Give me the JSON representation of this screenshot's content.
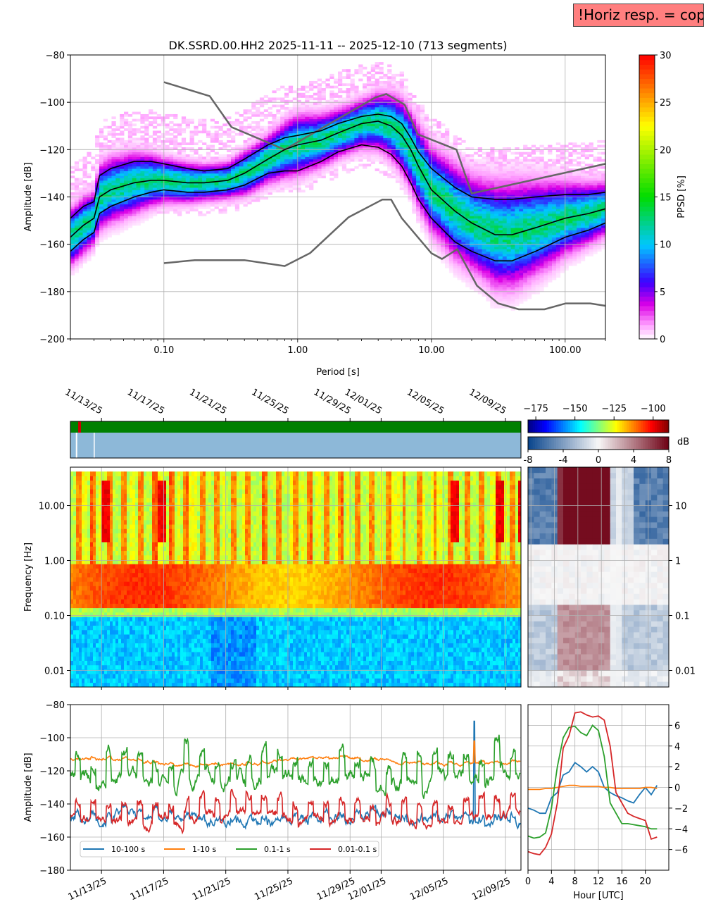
{
  "header": {
    "warning": "!Horiz resp. = copy",
    "title": "DK.SSRD.00.HH2   2025-11-11 -- 2025-12-10  (713 segments)"
  },
  "colors": {
    "grey_model": "#666666",
    "percentile": "#000000",
    "status_ok": "#008000",
    "status_bad": "#cc0000",
    "coverage": "#8db8d8",
    "series": [
      "#1f77b4",
      "#ff7f0e",
      "#2ca02c",
      "#d62728"
    ]
  },
  "chart_data": [
    {
      "id": "ppsd",
      "type": "heatmap",
      "title": "DK.SSRD.00.HH2   2025-11-11 -- 2025-12-10  (713 segments)",
      "xlabel": "Period [s]",
      "ylabel": "Amplitude [dB]",
      "xscale": "log",
      "xlim": [
        0.02,
        200
      ],
      "ylim": [
        -200,
        -80
      ],
      "xticks": [
        0.1,
        1,
        10,
        100
      ],
      "xtick_labels": [
        "0.10",
        "1.00",
        "10.00",
        "100.00"
      ],
      "yticks": [
        -200,
        -180,
        -160,
        -140,
        -120,
        -100,
        -80
      ],
      "colorbar": {
        "label": "PPSD [%]",
        "range": [
          0,
          30
        ],
        "ticks": [
          0,
          5,
          10,
          15,
          20,
          25,
          30
        ]
      },
      "percentiles": {
        "period": [
          0.02,
          0.025,
          0.03,
          0.033,
          0.04,
          0.06,
          0.08,
          0.1,
          0.15,
          0.2,
          0.3,
          0.4,
          0.6,
          0.8,
          1.0,
          1.5,
          2.0,
          3.0,
          4.0,
          5.0,
          6.0,
          7.0,
          8.0,
          10,
          15,
          20,
          30,
          40,
          60,
          100,
          150,
          200
        ],
        "upper": [
          -149,
          -144,
          -142,
          -131,
          -128,
          -125,
          -125,
          -126,
          -128,
          -129,
          -128,
          -124,
          -118,
          -115,
          -114,
          -112,
          -109,
          -106,
          -105,
          -106,
          -109,
          -115,
          -121,
          -128,
          -136,
          -140,
          -141,
          -141,
          -140,
          -139,
          -139,
          -138
        ],
        "median": [
          -157,
          -152,
          -149,
          -140,
          -137,
          -134,
          -133,
          -133,
          -134,
          -134,
          -133,
          -130,
          -124,
          -120,
          -118,
          -116,
          -113,
          -109,
          -108,
          -110,
          -114,
          -120,
          -127,
          -137,
          -146,
          -151,
          -156,
          -156,
          -153,
          -149,
          -147,
          -145
        ],
        "lower": [
          -163,
          -158,
          -155,
          -147,
          -144,
          -140,
          -138,
          -137,
          -138,
          -138,
          -137,
          -135,
          -130,
          -129,
          -129,
          -125,
          -121,
          -118,
          -119,
          -122,
          -127,
          -134,
          -141,
          -149,
          -159,
          -163,
          -167,
          -167,
          -163,
          -157,
          -154,
          -151
        ]
      },
      "noise_models": {
        "high": {
          "period": [
            0.1,
            0.22,
            0.32,
            0.8,
            3.8,
            4.6,
            6.3,
            7.9,
            15.4,
            20,
            354.8
          ],
          "db": [
            -91.5,
            -97.4,
            -110.5,
            -120,
            -98,
            -96.5,
            -101,
            -113.5,
            -120,
            -138.5,
            -126
          ]
        },
        "low": {
          "period": [
            0.1,
            0.17,
            0.4,
            0.8,
            1.24,
            2.4,
            4.3,
            5.0,
            6.0,
            10,
            12,
            15.6,
            21.9,
            31.6,
            45,
            70,
            101,
            154,
            200
          ],
          "db": [
            -168,
            -166.7,
            -166.7,
            -169.2,
            -163.7,
            -148.6,
            -141.1,
            -141.1,
            -149,
            -163.8,
            -166.2,
            -162.1,
            -177.5,
            -185,
            -187.5,
            -187.5,
            -185,
            -185,
            -186
          ]
        }
      }
    },
    {
      "id": "status",
      "type": "bar",
      "description_labels": "data availability and coverage strips",
      "segments": [
        {
          "start": "11/13/25 00",
          "end": "11/13/25 06",
          "state": "gap"
        },
        {
          "start": "11/13/25 06",
          "end": "12/10/25",
          "state": "ok"
        }
      ]
    },
    {
      "id": "spectrogram",
      "type": "heatmap",
      "ylabel": "Frequency [Hz]",
      "yscale": "log",
      "ylim": [
        0.005,
        50
      ],
      "yticks": [
        0.01,
        0.1,
        1,
        10
      ],
      "ytick_labels": [
        "0.01",
        "0.10",
        "1.00",
        "10.00"
      ],
      "date_ticks": [
        "11/13/25",
        "11/17/25",
        "11/21/25",
        "11/25/25",
        "11/29/25",
        "12/01/25",
        "12/05/25",
        "12/09/25"
      ],
      "colorbar": {
        "range": [
          -180,
          -90
        ],
        "ticks": [
          -175,
          -150,
          -125,
          -100
        ]
      }
    },
    {
      "id": "diurnal",
      "type": "heatmap",
      "yscale": "log",
      "ylim": [
        0.005,
        50
      ],
      "ytick_labels": [
        "10",
        "1",
        "0.1",
        "0.01"
      ],
      "colorbar": {
        "label": "dB",
        "range": [
          -8,
          8
        ],
        "ticks": [
          -8,
          -4,
          0,
          4,
          8
        ]
      }
    },
    {
      "id": "band_timeseries",
      "type": "line",
      "ylabel": "Amplitude [dB]",
      "ylim": [
        -180,
        -80
      ],
      "yticks": [
        -180,
        -160,
        -140,
        -120,
        -100,
        -80
      ],
      "date_ticks": [
        "11/13/25",
        "11/17/25",
        "11/21/25",
        "11/25/25",
        "11/29/25",
        "12/01/25",
        "12/05/25",
        "12/09/25"
      ],
      "series": [
        {
          "name": "10-100 s",
          "mean": -148
        },
        {
          "name": "1-10 s",
          "mean": -114
        },
        {
          "name": "0.1-1 s",
          "mean": -120
        },
        {
          "name": "0.01-0.1 s",
          "mean": -145
        }
      ]
    },
    {
      "id": "diurnal_bands",
      "type": "line",
      "xlabel": "Hour [UTC]",
      "xlim": [
        0,
        23
      ],
      "xticks": [
        0,
        4,
        8,
        12,
        16,
        20
      ],
      "ylim": [
        -8,
        8
      ],
      "yticks": [
        -6,
        -4,
        -2,
        0,
        2,
        4,
        6
      ],
      "hours": [
        0,
        1,
        2,
        3,
        4,
        5,
        6,
        7,
        8,
        9,
        10,
        11,
        12,
        13,
        14,
        15,
        16,
        17,
        18,
        19,
        20,
        21,
        22
      ],
      "series": [
        {
          "name": "10-100 s",
          "values": [
            -2.0,
            -2.2,
            -2.5,
            -2.5,
            -1.0,
            -0.5,
            1.2,
            1.5,
            2.4,
            2.0,
            1.5,
            2.0,
            1.5,
            0.0,
            -0.5,
            -0.8,
            -1.0,
            -1.3,
            -1.5,
            -0.7,
            0.0,
            -0.7,
            0.2
          ]
        },
        {
          "name": "1-10 s",
          "values": [
            -0.2,
            -0.2,
            -0.2,
            -0.1,
            -0.1,
            0.0,
            0.1,
            0.2,
            0.2,
            0.1,
            0.1,
            0.1,
            0.1,
            0.0,
            0.0,
            -0.1,
            -0.1,
            -0.1,
            -0.1,
            -0.1,
            0.0,
            0.0,
            -0.1
          ]
        },
        {
          "name": "0.1-1 s",
          "values": [
            -4.7,
            -4.9,
            -4.8,
            -4.4,
            -2.0,
            2.0,
            4.8,
            5.8,
            5.9,
            5.3,
            5.0,
            6.0,
            5.5,
            3.0,
            -1.5,
            -2.5,
            -3.5,
            -3.5,
            -3.6,
            -3.7,
            -3.8,
            -4.0,
            -4.0
          ]
        },
        {
          "name": "0.01-0.1 s",
          "values": [
            -6.2,
            -6.4,
            -6.5,
            -5.8,
            -4.5,
            -1.5,
            3.8,
            5.0,
            7.2,
            7.3,
            7.0,
            6.8,
            6.9,
            6.5,
            4.0,
            -0.5,
            -1.5,
            -2.5,
            -2.8,
            -3.0,
            -3.2,
            -5.0,
            -4.8
          ]
        }
      ]
    }
  ]
}
